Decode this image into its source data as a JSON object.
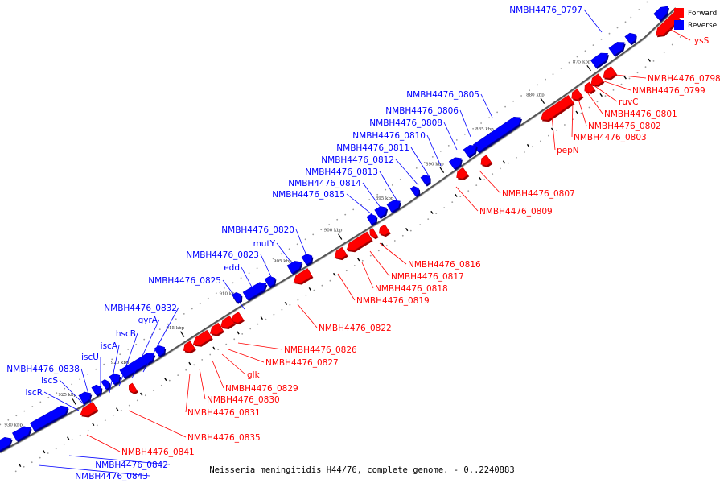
{
  "caption": "Neisseria meningitidis H44/76, complete genome. - 0..2240883",
  "legend": [
    {
      "label": "Forward",
      "color": "#ff0000"
    },
    {
      "label": "Reverse",
      "color": "#0000ff"
    }
  ],
  "colors": {
    "forward": "#ff0000",
    "reverse": "#0000ff",
    "backbone": "#666666"
  },
  "ticks": [
    "875 kbp",
    "880 kbp",
    "885 kbp",
    "890 kbp",
    "895 kbp",
    "900 kbp",
    "905 kbp",
    "910 kbp",
    "915 kbp",
    "920 kbp",
    "925 kbp",
    "930 kbp"
  ],
  "reverse_labels": [
    "NMBH4476_0797",
    "NMBH4476_0805",
    "NMBH4476_0806",
    "NMBH4476_0808",
    "NMBH4476_0810",
    "NMBH4476_0811",
    "NMBH4476_0812",
    "NMBH4476_0813",
    "NMBH4476_0814",
    "NMBH4476_0815",
    "NMBH4476_0820",
    "mutY",
    "NMBH4476_0823",
    "edd",
    "NMBH4476_0825",
    "NMBH4476_0832",
    "gyrA",
    "hscB",
    "iscA",
    "iscU",
    "NMBH4476_0838",
    "iscS",
    "iscR",
    "NMBH4476_0842",
    "NMBH4476_0843"
  ],
  "forward_labels": [
    "lysS",
    "NMBH4476_0798",
    "NMBH4476_0799",
    "ruvC",
    "NMBH4476_0801",
    "NMBH4476_0802",
    "NMBH4476_0803",
    "pepN",
    "NMBH4476_0807",
    "NMBH4476_0809",
    "NMBH4476_0816",
    "NMBH4476_0817",
    "NMBH4476_0818",
    "NMBH4476_0819",
    "NMBH4476_0822",
    "NMBH4476_0826",
    "NMBH4476_0827",
    "glk",
    "NMBH4476_0829",
    "NMBH4476_0830",
    "NMBH4476_0831",
    "NMBH4476_0835",
    "NMBH4476_0841"
  ]
}
